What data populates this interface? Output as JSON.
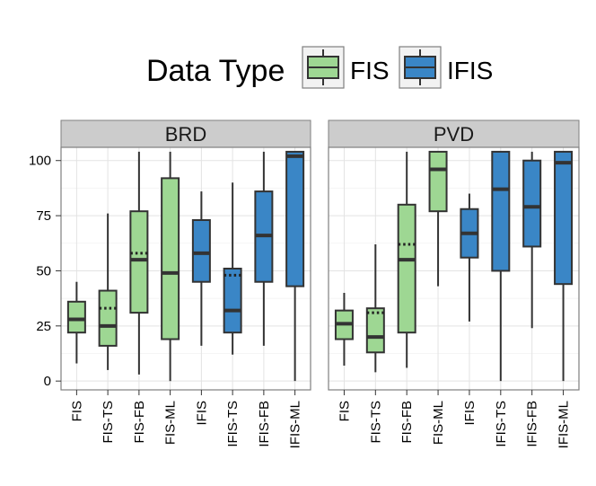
{
  "chart_data": {
    "type": "boxplot",
    "legend": {
      "title": "Data Type",
      "position": "top",
      "entries": [
        {
          "label": "FIS",
          "color": "#9ed793"
        },
        {
          "label": "IFIS",
          "color": "#3a86c6"
        }
      ]
    },
    "y_axis": {
      "ylim": [
        -4,
        106
      ],
      "ticks": [
        0,
        25,
        50,
        75,
        100
      ],
      "tick_labels": [
        "0",
        "25",
        "50",
        "75",
        "100"
      ]
    },
    "categories": [
      "FIS",
      "FIS-TS",
      "FIS-FB",
      "FIS-ML",
      "IFIS",
      "IFIS-TS",
      "IFIS-FB",
      "IFIS-ML"
    ],
    "category_types": [
      "FIS",
      "FIS",
      "FIS",
      "FIS",
      "IFIS",
      "IFIS",
      "IFIS",
      "IFIS"
    ],
    "panels": [
      {
        "name": "BRD",
        "boxes": [
          {
            "category": "FIS",
            "min": 8,
            "q1": 22,
            "median": 28,
            "q3": 36,
            "max": 45,
            "mean": 28
          },
          {
            "category": "FIS-TS",
            "min": 5,
            "q1": 16,
            "median": 25,
            "q3": 41,
            "max": 76,
            "mean": 33
          },
          {
            "category": "FIS-FB",
            "min": 3,
            "q1": 31,
            "median": 55,
            "q3": 77,
            "max": 104,
            "mean": 58
          },
          {
            "category": "FIS-ML",
            "min": 0,
            "q1": 19,
            "median": 49,
            "q3": 92,
            "max": 104,
            "mean": 49
          },
          {
            "category": "IFIS",
            "min": 16,
            "q1": 45,
            "median": 58,
            "q3": 73,
            "max": 86,
            "mean": 58
          },
          {
            "category": "IFIS-TS",
            "min": 12,
            "q1": 22,
            "median": 32,
            "q3": 51,
            "max": 90,
            "mean": 48
          },
          {
            "category": "IFIS-FB",
            "min": 16,
            "q1": 45,
            "median": 66,
            "q3": 86,
            "max": 104,
            "mean": 66
          },
          {
            "category": "IFIS-ML",
            "min": 0,
            "q1": 43,
            "median": 102,
            "q3": 104,
            "max": 104,
            "mean": 102
          }
        ]
      },
      {
        "name": "PVD",
        "boxes": [
          {
            "category": "FIS",
            "min": 7,
            "q1": 19,
            "median": 26,
            "q3": 32,
            "max": 40,
            "mean": 26
          },
          {
            "category": "FIS-TS",
            "min": 4,
            "q1": 13,
            "median": 20,
            "q3": 33,
            "max": 62,
            "mean": 31
          },
          {
            "category": "FIS-FB",
            "min": 6,
            "q1": 22,
            "median": 55,
            "q3": 80,
            "max": 104,
            "mean": 62
          },
          {
            "category": "FIS-ML",
            "min": 43,
            "q1": 77,
            "median": 96,
            "q3": 104,
            "max": 104,
            "mean": 96
          },
          {
            "category": "IFIS",
            "min": 27,
            "q1": 56,
            "median": 67,
            "q3": 78,
            "max": 85,
            "mean": 66
          },
          {
            "category": "IFIS-TS",
            "min": 0,
            "q1": 50,
            "median": 87,
            "q3": 104,
            "max": 104,
            "mean": 87
          },
          {
            "category": "IFIS-FB",
            "min": 24,
            "q1": 61,
            "median": 79,
            "q3": 100,
            "max": 104,
            "mean": 79
          },
          {
            "category": "IFIS-ML",
            "min": 0,
            "q1": 44,
            "median": 99,
            "q3": 104,
            "max": 104,
            "mean": 99
          }
        ]
      }
    ],
    "grid": true
  }
}
